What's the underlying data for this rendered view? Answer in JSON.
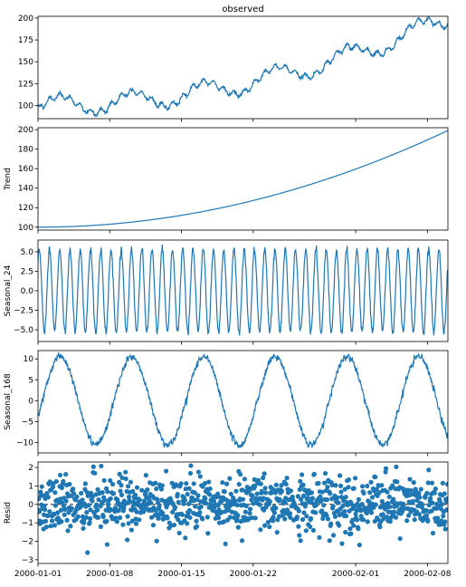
{
  "chart_data": [
    {
      "type": "line",
      "title": "observed",
      "ylabel": "",
      "ylim": [
        85,
        202
      ],
      "yticks": [
        100,
        125,
        150,
        175,
        200
      ],
      "series": [
        {
          "color": "#1f77b4",
          "hourly_points": 960,
          "components": "trend + seasonal_24 + seasonal_168 + resid"
        }
      ]
    },
    {
      "type": "line",
      "title": "",
      "ylabel": "Trend",
      "ylim": [
        97,
        202
      ],
      "yticks": [
        100,
        120,
        140,
        160,
        180,
        200
      ],
      "series": [
        {
          "color": "#1f77b4",
          "start": 100,
          "end": 199
        }
      ]
    },
    {
      "type": "line",
      "title": "",
      "ylabel": "Seasonal_24",
      "ylim": [
        -6.5,
        6.5
      ],
      "yticks": [
        -5.0,
        -2.5,
        0.0,
        2.5,
        5.0
      ],
      "ytick_labels": [
        "−5.0",
        "−2.5",
        "0.0",
        "2.5",
        "5.0"
      ],
      "series": [
        {
          "color": "#1f77b4",
          "period_hours": 24,
          "amplitude": 5.3
        }
      ]
    },
    {
      "type": "line",
      "title": "",
      "ylabel": "Seasonal_168",
      "ylim": [
        -12.5,
        12
      ],
      "yticks": [
        -10,
        -5,
        0,
        5,
        10
      ],
      "ytick_labels": [
        "−10",
        "−5",
        "0",
        "5",
        "10"
      ],
      "series": [
        {
          "color": "#1f77b4",
          "period_hours": 168,
          "amplitude": 10.5
        }
      ]
    },
    {
      "type": "scatter",
      "title": "",
      "ylabel": "Resid",
      "ylim": [
        -3.2,
        2.3
      ],
      "yticks": [
        -3,
        -2,
        -1,
        0,
        1,
        2
      ],
      "ytick_labels": [
        "−3",
        "−2",
        "−1",
        "0",
        "1",
        "2"
      ],
      "series": [
        {
          "color": "#1f77b4",
          "std": 0.75
        }
      ],
      "baseline": 0
    }
  ],
  "x_axis": {
    "range": [
      "2000-01-01",
      "2000-02-10"
    ],
    "ticks": [
      "2000-01-01",
      "2000-01-08",
      "2000-01-15",
      "2000-01-22",
      "2000-02-01",
      "2000-02-08"
    ]
  },
  "colors": {
    "line": "#1f77b4",
    "frame": "#000000"
  }
}
